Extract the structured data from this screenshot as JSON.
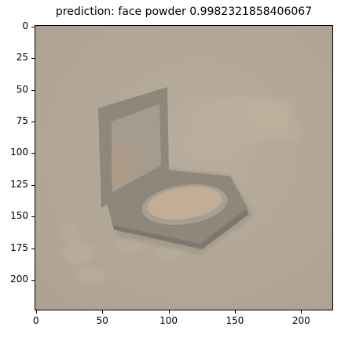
{
  "title": "prediction: face powder 0.9982321858406067",
  "axes": {
    "y_ticks": [
      "0",
      "25",
      "50",
      "75",
      "100",
      "125",
      "150",
      "175",
      "200"
    ],
    "x_ticks": [
      "0",
      "50",
      "100",
      "150",
      "200"
    ]
  },
  "image": {
    "subject": "face powder compact with mirror",
    "colors": {
      "background": "#b3a898",
      "compact": "#8f877b",
      "compact_dark": "#7e776d",
      "powder": "#c4ad96",
      "powder_spill": "#c2b29e"
    }
  }
}
